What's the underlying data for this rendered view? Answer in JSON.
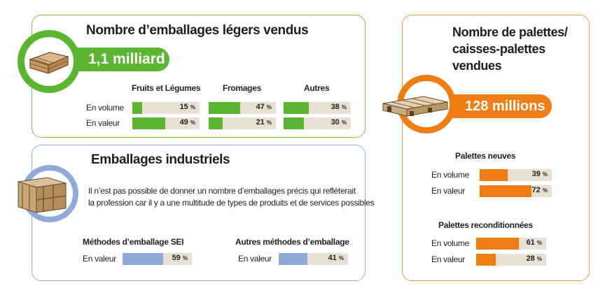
{
  "light_packaging": {
    "title": "Nombre d’emballages légers vendus",
    "total": "1,1 milliard",
    "row_labels": [
      "En volume",
      "En valeur"
    ],
    "pct_suffix": "%",
    "accent": "#5cb531"
  },
  "industrial_packaging": {
    "title": "Emballages industriels",
    "note_line1": "Il n’est pas possible de donner un nombre d’emballages précis qui refléterait",
    "note_line2": "la profession car il y a une multitude de types de produits et de services possibles",
    "row_label": "En valeur",
    "accent": "#8fa9d8"
  },
  "pallets": {
    "title_line1": "Nombre de palettes/",
    "title_line2": "caisses-palettes",
    "title_line3": "vendues",
    "total": "128 millions",
    "row_labels": [
      "En volume",
      "En valeur"
    ],
    "accent": "#ee7d13"
  },
  "icons": [
    "crate-icon",
    "wooden-box-icon",
    "pallet-icon"
  ],
  "chart_data": [
    {
      "type": "bar",
      "title": "Nombre d’emballages légers vendus",
      "categories": [
        "Fruits et Légumes",
        "Fromages",
        "Autres"
      ],
      "series": [
        {
          "name": "En volume",
          "values": [
            15,
            47,
            38
          ]
        },
        {
          "name": "En valeur",
          "values": [
            49,
            21,
            30
          ]
        }
      ],
      "unit": "%",
      "ylim": [
        0,
        100
      ]
    },
    {
      "type": "bar",
      "title": "Emballages industriels",
      "categories": [
        "Méthodes d’emballage SEI",
        "Autres méthodes d’emballage"
      ],
      "series": [
        {
          "name": "En valeur",
          "values": [
            59,
            41
          ]
        }
      ],
      "unit": "%",
      "ylim": [
        0,
        100
      ]
    },
    {
      "type": "bar",
      "title": "Nombre de palettes/ caisses-palettes vendues",
      "categories": [
        "Palettes neuves",
        "Palettes reconditionnées"
      ],
      "series": [
        {
          "name": "En volume",
          "values": [
            39,
            61
          ]
        },
        {
          "name": "En valeur",
          "values": [
            72,
            28
          ]
        }
      ],
      "unit": "%",
      "ylim": [
        0,
        100
      ]
    }
  ]
}
